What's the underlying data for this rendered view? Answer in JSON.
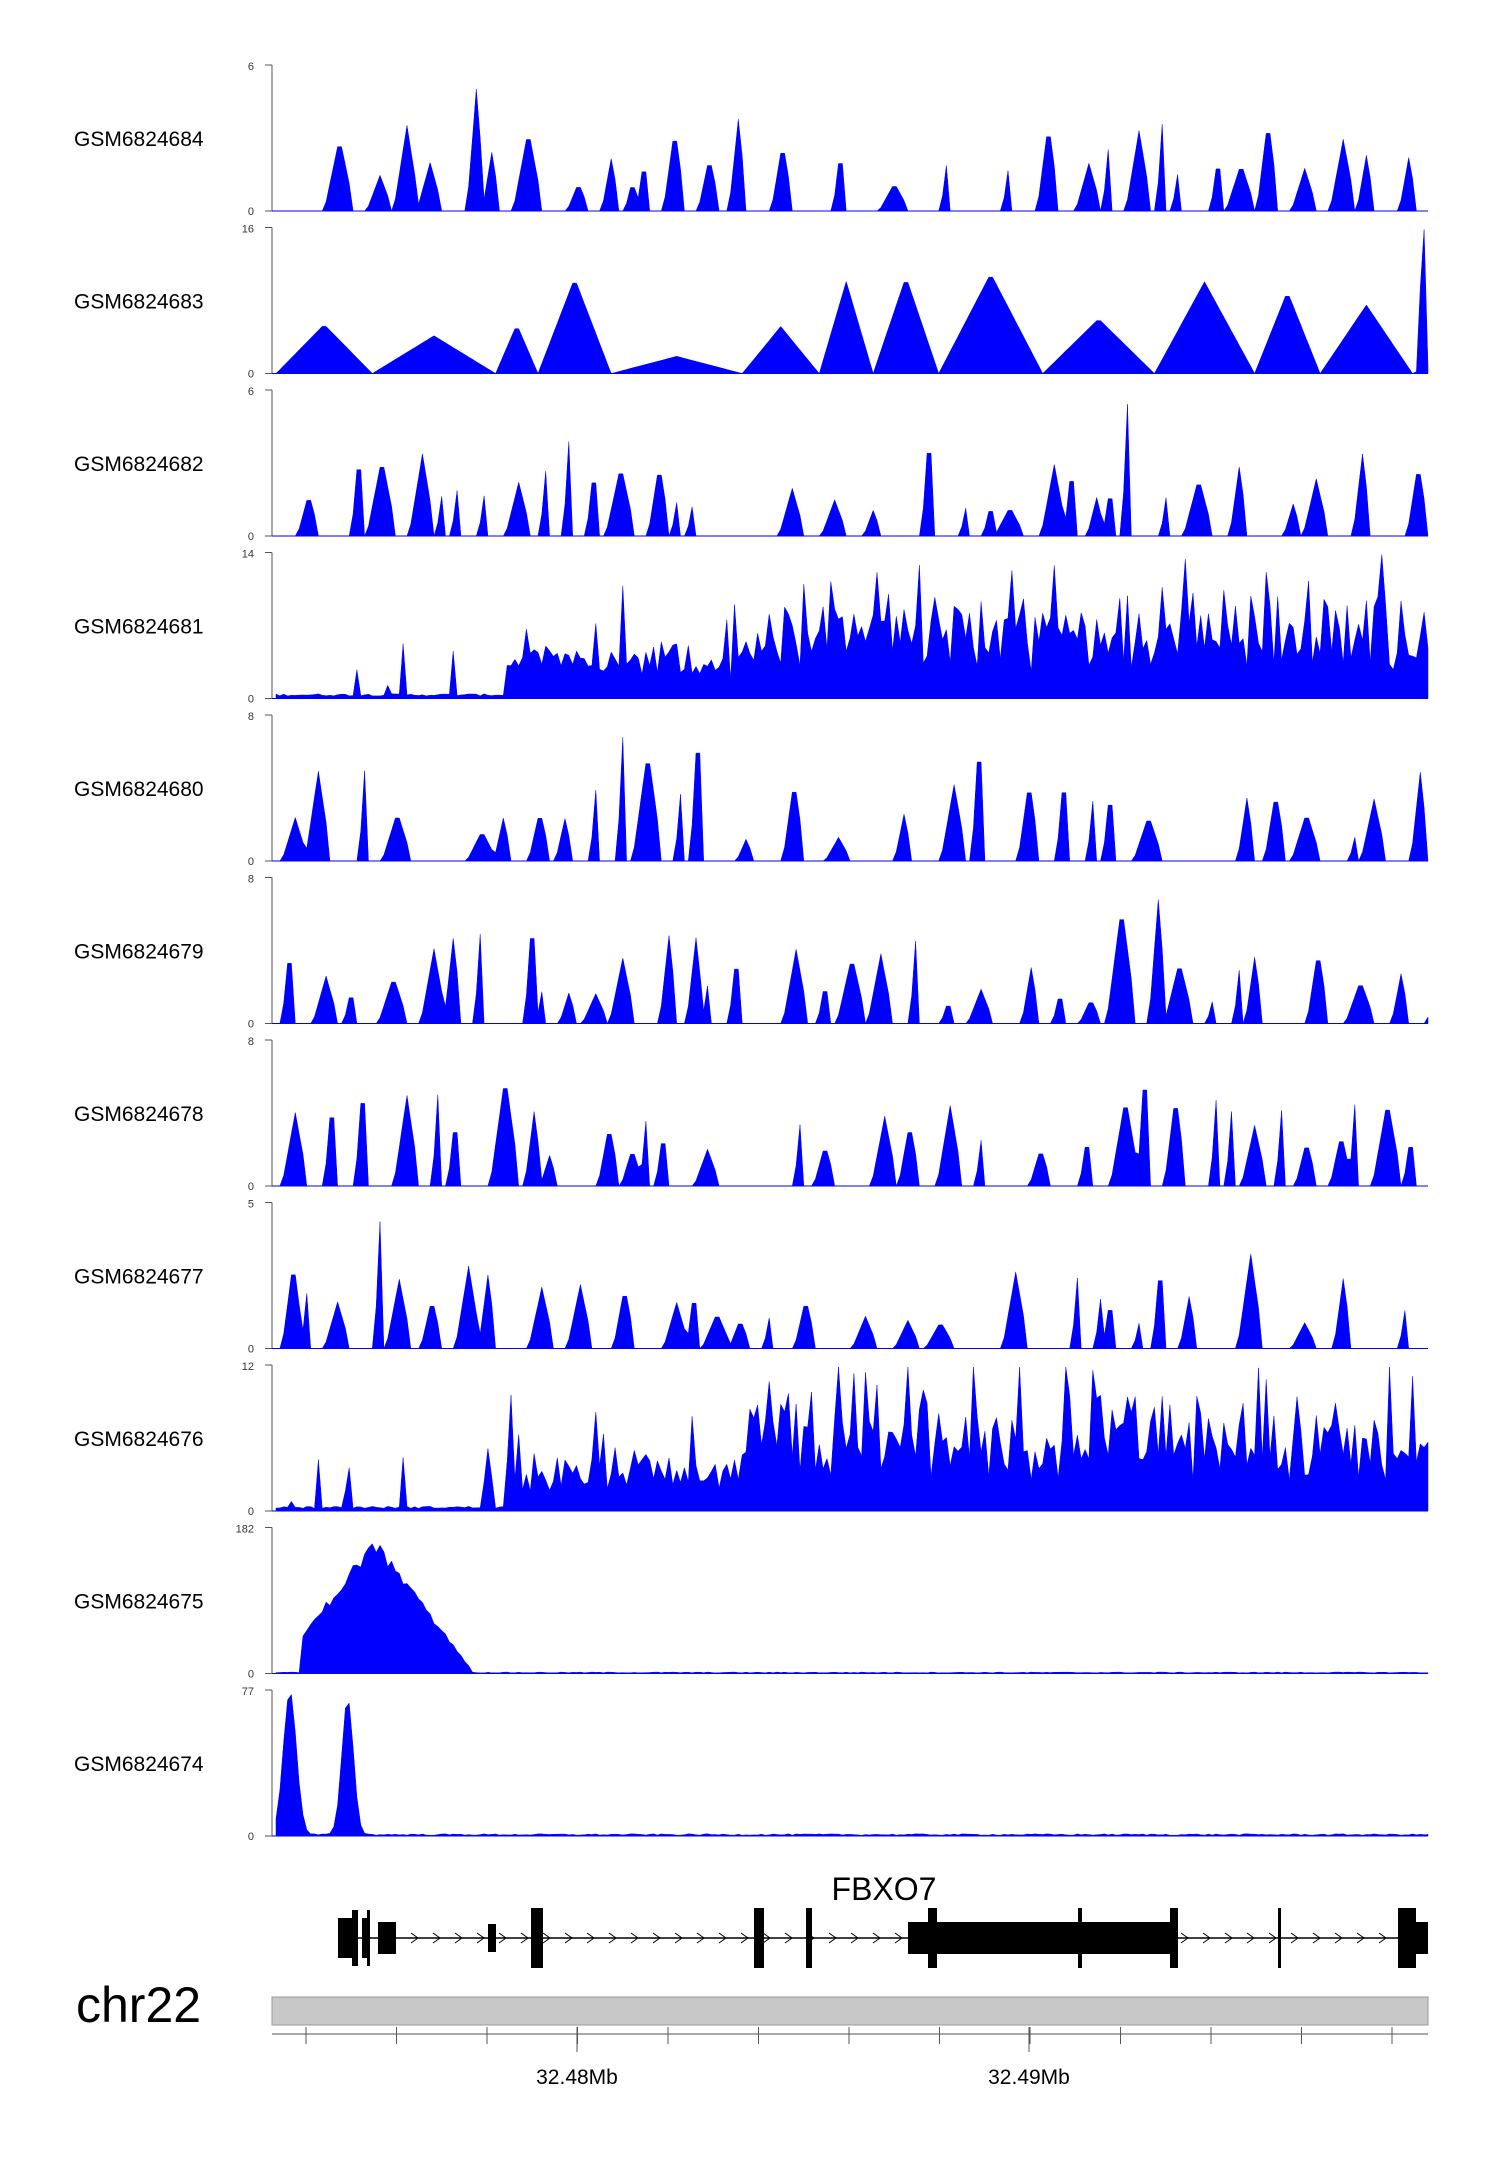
{
  "chart_data": {
    "type": "area",
    "region": {
      "chromosome": "chr22",
      "axis_ticks": [
        {
          "position": 32480000,
          "label": "32.48Mb"
        },
        {
          "position": 32490000,
          "label": "32.49Mb"
        }
      ]
    },
    "gene": {
      "name": "FBXO7"
    },
    "tracks": [
      {
        "name": "GSM6824684",
        "max": 6,
        "min": 0
      },
      {
        "name": "GSM6824683",
        "max": 16,
        "min": 0
      },
      {
        "name": "GSM6824682",
        "max": 6,
        "min": 0
      },
      {
        "name": "GSM6824681",
        "max": 14,
        "min": 0
      },
      {
        "name": "GSM6824680",
        "max": 8,
        "min": 0
      },
      {
        "name": "GSM6824679",
        "max": 8,
        "min": 0
      },
      {
        "name": "GSM6824678",
        "max": 8,
        "min": 0
      },
      {
        "name": "GSM6824677",
        "max": 5,
        "min": 0
      },
      {
        "name": "GSM6824676",
        "max": 12,
        "min": 0
      },
      {
        "name": "GSM6824675",
        "max": 182,
        "min": 0
      },
      {
        "name": "GSM6824674",
        "max": 77,
        "min": 0
      }
    ],
    "colors": {
      "signal": "#0000ff",
      "gene": "#000000",
      "ideogram": "#c8c8c8"
    }
  }
}
